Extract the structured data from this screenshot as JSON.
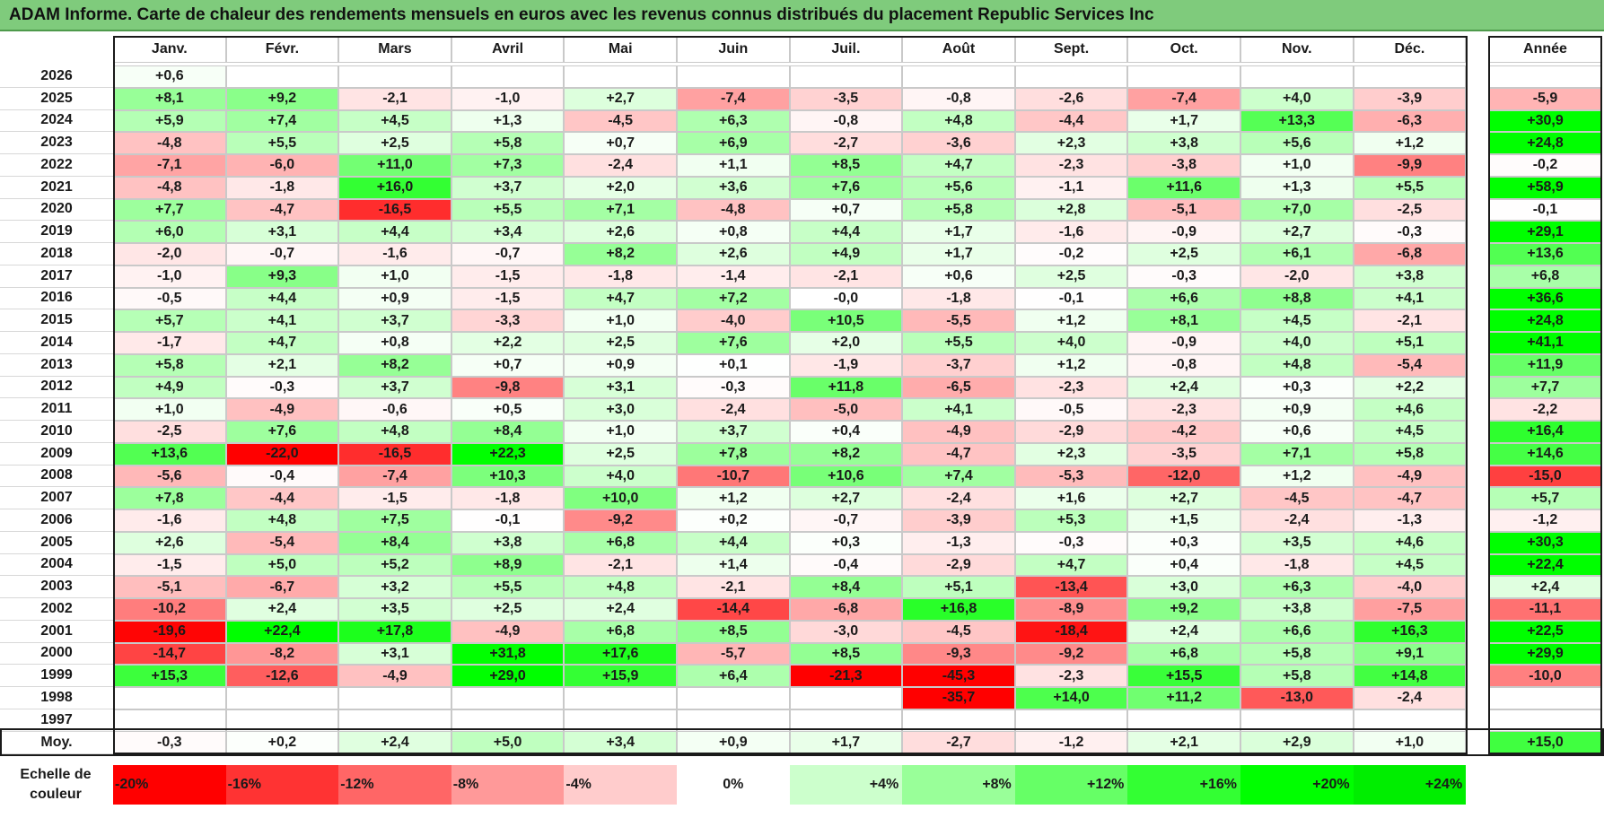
{
  "title": "ADAM Informe. Carte de chaleur des rendements mensuels en euros avec les revenus connus distribués du placement Republic Services Inc",
  "chart_data": {
    "type": "heatmap",
    "title": "ADAM Informe. Carte de chaleur des rendements mensuels en euros avec les revenus connus distribués du placement Republic Services Inc",
    "columns": [
      "Janv.",
      "Févr.",
      "Mars",
      "Avril",
      "Mai",
      "Juin",
      "Juil.",
      "Août",
      "Sept.",
      "Oct.",
      "Nov.",
      "Déc."
    ],
    "annual_header": "Année",
    "rows": [
      {
        "year": "2026",
        "values": [
          "+0,6",
          "",
          "",
          "",
          "",
          "",
          "",
          "",
          "",
          "",
          "",
          ""
        ],
        "annual": ""
      },
      {
        "year": "2025",
        "values": [
          "+8,1",
          "+9,2",
          "-2,1",
          "-1,0",
          "+2,7",
          "-7,4",
          "-3,5",
          "-0,8",
          "-2,6",
          "-7,4",
          "+4,0",
          "-3,9"
        ],
        "annual": "-5,9"
      },
      {
        "year": "2024",
        "values": [
          "+5,9",
          "+7,4",
          "+4,5",
          "+1,3",
          "-4,5",
          "+6,3",
          "-0,8",
          "+4,8",
          "-4,4",
          "+1,7",
          "+13,3",
          "-6,3"
        ],
        "annual": "+30,9"
      },
      {
        "year": "2023",
        "values": [
          "-4,8",
          "+5,5",
          "+2,5",
          "+5,8",
          "+0,7",
          "+6,9",
          "-2,7",
          "-3,6",
          "+2,3",
          "+3,8",
          "+5,6",
          "+1,2"
        ],
        "annual": "+24,8"
      },
      {
        "year": "2022",
        "values": [
          "-7,1",
          "-6,0",
          "+11,0",
          "+7,3",
          "-2,4",
          "+1,1",
          "+8,5",
          "+4,7",
          "-2,3",
          "-3,8",
          "+1,0",
          "-9,9"
        ],
        "annual": "-0,2"
      },
      {
        "year": "2021",
        "values": [
          "-4,8",
          "-1,8",
          "+16,0",
          "+3,7",
          "+2,0",
          "+3,6",
          "+7,6",
          "+5,6",
          "-1,1",
          "+11,6",
          "+1,3",
          "+5,5"
        ],
        "annual": "+58,9"
      },
      {
        "year": "2020",
        "values": [
          "+7,7",
          "-4,7",
          "-16,5",
          "+5,5",
          "+7,1",
          "-4,8",
          "+0,7",
          "+5,8",
          "+2,8",
          "-5,1",
          "+7,0",
          "-2,5"
        ],
        "annual": "-0,1"
      },
      {
        "year": "2019",
        "values": [
          "+6,0",
          "+3,1",
          "+4,4",
          "+3,4",
          "+2,6",
          "+0,8",
          "+4,4",
          "+1,7",
          "-1,6",
          "-0,9",
          "+2,7",
          "-0,3"
        ],
        "annual": "+29,1"
      },
      {
        "year": "2018",
        "values": [
          "-2,0",
          "-0,7",
          "-1,6",
          "-0,7",
          "+8,2",
          "+2,6",
          "+4,9",
          "+1,7",
          "-0,2",
          "+2,5",
          "+6,1",
          "-6,8"
        ],
        "annual": "+13,6"
      },
      {
        "year": "2017",
        "values": [
          "-1,0",
          "+9,3",
          "+1,0",
          "-1,5",
          "-1,8",
          "-1,4",
          "-2,1",
          "+0,6",
          "+2,5",
          "-0,3",
          "-2,0",
          "+3,8"
        ],
        "annual": "+6,8"
      },
      {
        "year": "2016",
        "values": [
          "-0,5",
          "+4,4",
          "+0,9",
          "-1,5",
          "+4,7",
          "+7,2",
          "-0,0",
          "-1,8",
          "-0,1",
          "+6,6",
          "+8,8",
          "+4,1"
        ],
        "annual": "+36,6"
      },
      {
        "year": "2015",
        "values": [
          "+5,7",
          "+4,1",
          "+3,7",
          "-3,3",
          "+1,0",
          "-4,0",
          "+10,5",
          "-5,5",
          "+1,2",
          "+8,1",
          "+4,5",
          "-2,1"
        ],
        "annual": "+24,8"
      },
      {
        "year": "2014",
        "values": [
          "-1,7",
          "+4,7",
          "+0,8",
          "+2,2",
          "+2,5",
          "+7,6",
          "+2,0",
          "+5,5",
          "+4,0",
          "-0,9",
          "+4,0",
          "+5,1"
        ],
        "annual": "+41,1"
      },
      {
        "year": "2013",
        "values": [
          "+5,8",
          "+2,1",
          "+8,2",
          "+0,7",
          "+0,9",
          "+0,1",
          "-1,9",
          "-3,7",
          "+1,2",
          "-0,8",
          "+4,8",
          "-5,4"
        ],
        "annual": "+11,9"
      },
      {
        "year": "2012",
        "values": [
          "+4,9",
          "-0,3",
          "+3,7",
          "-9,8",
          "+3,1",
          "-0,3",
          "+11,8",
          "-6,5",
          "-2,3",
          "+2,4",
          "+0,3",
          "+2,2"
        ],
        "annual": "+7,7"
      },
      {
        "year": "2011",
        "values": [
          "+1,0",
          "-4,9",
          "-0,6",
          "+0,5",
          "+3,0",
          "-2,4",
          "-5,0",
          "+4,1",
          "-0,5",
          "-2,3",
          "+0,9",
          "+4,6"
        ],
        "annual": "-2,2"
      },
      {
        "year": "2010",
        "values": [
          "-2,5",
          "+7,6",
          "+4,8",
          "+8,4",
          "+1,0",
          "+3,7",
          "+0,4",
          "-4,9",
          "-2,9",
          "-4,2",
          "+0,6",
          "+4,5"
        ],
        "annual": "+16,4"
      },
      {
        "year": "2009",
        "values": [
          "+13,6",
          "-22,0",
          "-16,5",
          "+22,3",
          "+2,5",
          "+7,8",
          "+8,2",
          "-4,7",
          "+2,3",
          "-3,5",
          "+7,1",
          "+5,8"
        ],
        "annual": "+14,6"
      },
      {
        "year": "2008",
        "values": [
          "-5,6",
          "-0,4",
          "-7,4",
          "+10,3",
          "+4,0",
          "-10,7",
          "+10,6",
          "+7,4",
          "-5,3",
          "-12,0",
          "+1,2",
          "-4,9"
        ],
        "annual": "-15,0"
      },
      {
        "year": "2007",
        "values": [
          "+7,8",
          "-4,4",
          "-1,5",
          "-1,8",
          "+10,0",
          "+1,2",
          "+2,7",
          "-2,4",
          "+1,6",
          "+2,7",
          "-4,5",
          "-4,7"
        ],
        "annual": "+5,7"
      },
      {
        "year": "2006",
        "values": [
          "-1,6",
          "+4,8",
          "+7,5",
          "-0,1",
          "-9,2",
          "+0,2",
          "-0,7",
          "-3,9",
          "+5,3",
          "+1,5",
          "-2,4",
          "-1,3"
        ],
        "annual": "-1,2"
      },
      {
        "year": "2005",
        "values": [
          "+2,6",
          "-5,4",
          "+8,4",
          "+3,8",
          "+6,8",
          "+4,4",
          "+0,3",
          "-1,3",
          "-0,3",
          "+0,3",
          "+3,5",
          "+4,6"
        ],
        "annual": "+30,3"
      },
      {
        "year": "2004",
        "values": [
          "-1,5",
          "+5,0",
          "+5,2",
          "+8,9",
          "-2,1",
          "+1,4",
          "-0,4",
          "-2,9",
          "+4,7",
          "+0,4",
          "-1,8",
          "+4,5"
        ],
        "annual": "+22,4"
      },
      {
        "year": "2003",
        "values": [
          "-5,1",
          "-6,7",
          "+3,2",
          "+5,5",
          "+4,8",
          "-2,1",
          "+8,4",
          "+5,1",
          "-13,4",
          "+3,0",
          "+6,3",
          "-4,0"
        ],
        "annual": "+2,4"
      },
      {
        "year": "2002",
        "values": [
          "-10,2",
          "+2,4",
          "+3,5",
          "+2,5",
          "+2,4",
          "-14,4",
          "-6,8",
          "+16,8",
          "-8,9",
          "+9,2",
          "+3,8",
          "-7,5"
        ],
        "annual": "-11,1"
      },
      {
        "year": "2001",
        "values": [
          "-19,6",
          "+22,4",
          "+17,8",
          "-4,9",
          "+6,8",
          "+8,5",
          "-3,0",
          "-4,5",
          "-18,4",
          "+2,4",
          "+6,6",
          "+16,3"
        ],
        "annual": "+22,5"
      },
      {
        "year": "2000",
        "values": [
          "-14,7",
          "-8,2",
          "+3,1",
          "+31,8",
          "+17,6",
          "-5,7",
          "+8,5",
          "-9,3",
          "-9,2",
          "+6,8",
          "+5,8",
          "+9,1"
        ],
        "annual": "+29,9"
      },
      {
        "year": "1999",
        "values": [
          "+15,3",
          "-12,6",
          "-4,9",
          "+29,0",
          "+15,9",
          "+6,4",
          "-21,3",
          "-45,3",
          "-2,3",
          "+15,5",
          "+5,8",
          "+14,8"
        ],
        "annual": "-10,0"
      },
      {
        "year": "1998",
        "values": [
          "",
          "",
          "",
          "",
          "",
          "",
          "",
          "-35,7",
          "+14,0",
          "+11,2",
          "-13,0",
          "-2,4"
        ],
        "annual": ""
      },
      {
        "year": "1997",
        "values": [
          "",
          "",
          "",
          "",
          "",
          "",
          "",
          "",
          "",
          "",
          "",
          ""
        ],
        "annual": ""
      }
    ],
    "average": {
      "label": "Moy.",
      "values": [
        "-0,3",
        "+0,2",
        "+2,4",
        "+5,0",
        "+3,4",
        "+0,9",
        "+1,7",
        "-2,7",
        "-1,2",
        "+2,1",
        "+2,9",
        "+1,0"
      ],
      "annual": "+15,0"
    },
    "scale": {
      "label": "Echelle de couleur",
      "steps": [
        {
          "label": "-20%",
          "color": "#ff0000"
        },
        {
          "label": "-16%",
          "color": "#ff3333"
        },
        {
          "label": "-12%",
          "color": "#ff6666"
        },
        {
          "label": "-8%",
          "color": "#ff9999"
        },
        {
          "label": "-4%",
          "color": "#ffcccc"
        },
        {
          "label": "0%",
          "color": "#ffffff"
        },
        {
          "label": "+4%",
          "color": "#ccffcc"
        },
        {
          "label": "+8%",
          "color": "#99ff99"
        },
        {
          "label": "+12%",
          "color": "#66ff66"
        },
        {
          "label": "+16%",
          "color": "#33ff33"
        },
        {
          "label": "+20%",
          "color": "#00ff00"
        },
        {
          "label": "+24%",
          "color": "#00ee00"
        }
      ]
    },
    "colors": {
      "negative_max": "#ff0000",
      "neutral": "#ffffff",
      "positive_max": "#00ff00",
      "title_bar": "#7fcb7c"
    }
  }
}
